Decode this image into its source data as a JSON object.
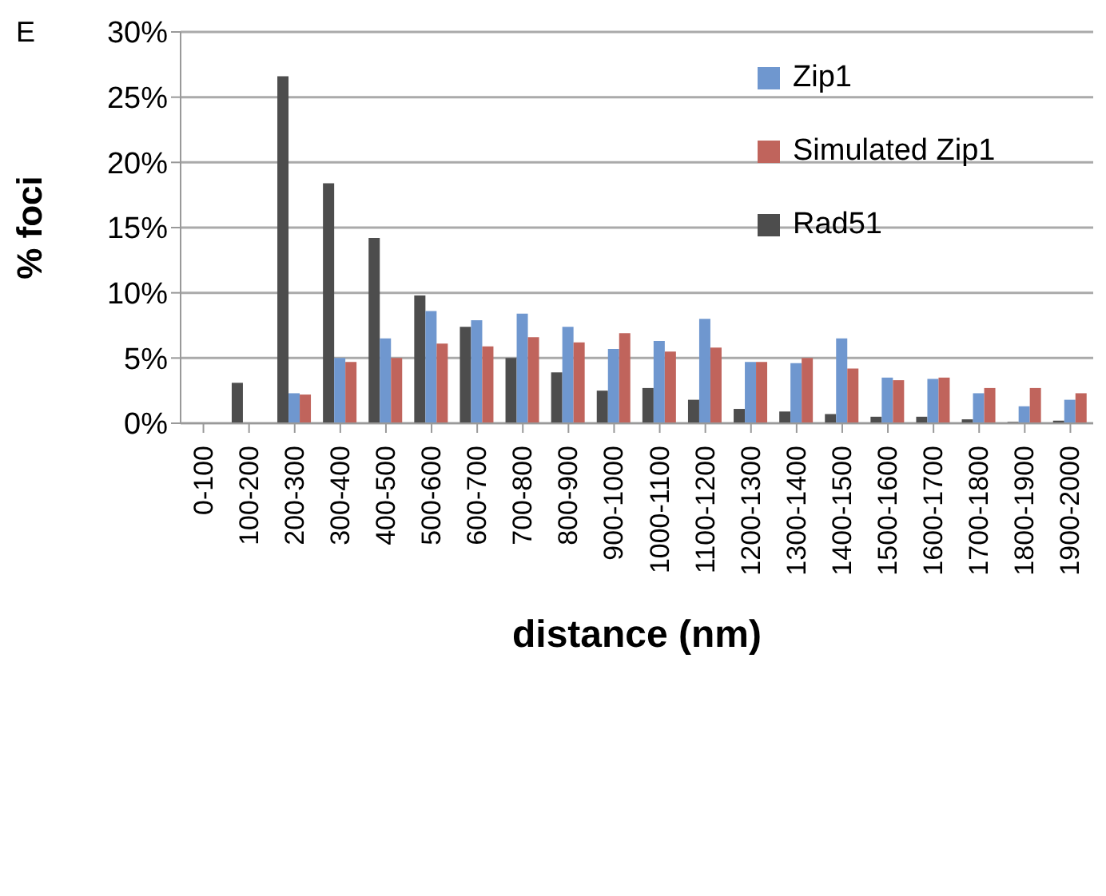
{
  "chart_data": {
    "type": "bar",
    "xlabel": "distance (nm)",
    "ylabel": "% foci",
    "annotations": [
      "E"
    ],
    "categories": [
      "0-100",
      "100-200",
      "200-300",
      "300-400",
      "400-500",
      "500-600",
      "600-700",
      "700-800",
      "800-900",
      "900-1000",
      "1000-1100",
      "1100-1200",
      "1200-1300",
      "1300-1400",
      "1400-1500",
      "1500-1600",
      "1600-1700",
      "1700-1800",
      "1800-1900",
      "1900-2000"
    ],
    "series": [
      {
        "name": "Rad51",
        "color": "#4d4d4d",
        "values": [
          0,
          3.1,
          26.6,
          18.4,
          14.2,
          9.8,
          7.4,
          5.0,
          3.9,
          2.5,
          2.7,
          1.8,
          1.1,
          0.9,
          0.7,
          0.5,
          0.5,
          0.3,
          0.1,
          0.2
        ]
      },
      {
        "name": "Zip1",
        "color": "#6f97cf",
        "values": [
          0,
          0,
          2.3,
          5.0,
          6.5,
          8.6,
          7.9,
          8.4,
          7.4,
          5.7,
          6.3,
          8.0,
          4.7,
          4.6,
          6.5,
          3.5,
          3.4,
          2.3,
          1.3,
          1.8
        ]
      },
      {
        "name": "Simulated Zip1",
        "color": "#c0645c",
        "values": [
          0,
          0,
          2.2,
          4.7,
          5.0,
          6.1,
          5.9,
          6.6,
          6.2,
          6.9,
          5.5,
          5.8,
          4.7,
          5.0,
          4.2,
          3.3,
          3.5,
          2.7,
          2.7,
          2.3
        ]
      }
    ],
    "ylim": [
      0,
      30
    ],
    "yticks": [
      {
        "value": 0,
        "label": "0%"
      },
      {
        "value": 5,
        "label": "5%"
      },
      {
        "value": 10,
        "label": "10%"
      },
      {
        "value": 15,
        "label": "15%"
      },
      {
        "value": 20,
        "label": "20%"
      },
      {
        "value": 25,
        "label": "25%"
      },
      {
        "value": 30,
        "label": "30%"
      }
    ],
    "grid": "y",
    "legend": "top right"
  }
}
